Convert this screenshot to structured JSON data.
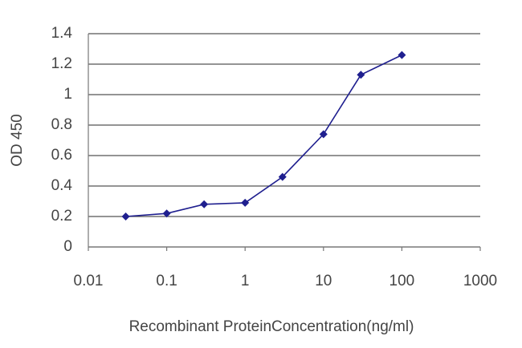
{
  "chart_data": {
    "type": "line",
    "x_label": "Recombinant ProteinConcentration(ng/ml)",
    "y_label": "OD 450",
    "x": [
      0.03,
      0.1,
      0.3,
      1,
      3,
      10,
      30,
      100
    ],
    "series": [
      {
        "name": "OD 450",
        "color": "#1f1f8f",
        "values": [
          0.2,
          0.22,
          0.28,
          0.29,
          0.46,
          0.74,
          1.13,
          1.26
        ]
      }
    ],
    "xscale": "log",
    "xlim": [
      0.01,
      1000
    ],
    "xticks": [
      0.01,
      0.1,
      1,
      10,
      100,
      1000
    ],
    "ylim": [
      0,
      1.4
    ],
    "yticks": [
      0,
      0.2,
      0.4,
      0.6,
      0.8,
      1,
      1.2,
      1.4
    ],
    "grid": true
  }
}
